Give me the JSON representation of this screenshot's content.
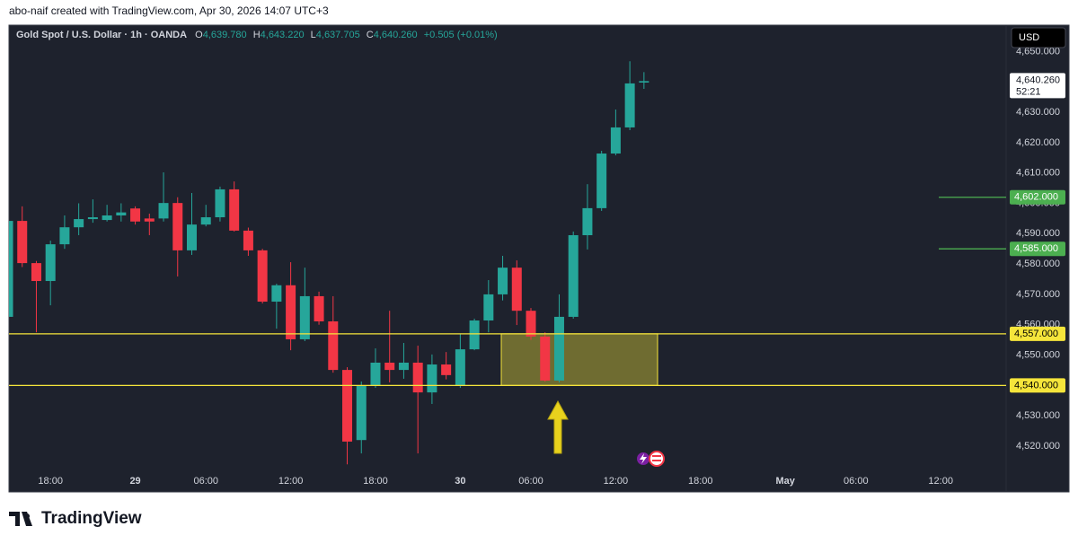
{
  "caption": "abo-naif created with TradingView.com, Apr 30, 2026 14:07 UTC+3",
  "brand": "TradingView",
  "chart_data": {
    "type": "candlestick",
    "title": "Gold Spot / U.S. Dollar · 1h · OANDA",
    "ohlc": [
      {
        "key": "O",
        "label": "4,639.780"
      },
      {
        "key": "H",
        "label": "4,643.220"
      },
      {
        "key": "L",
        "label": "4,637.705"
      },
      {
        "key": "C",
        "label": "4,640.260"
      }
    ],
    "change": "+0.505 (+0.01%)",
    "currency": "USD",
    "countdown": "52:21",
    "up_color": "#26a69a",
    "down_color": "#f23645",
    "categories": [
      null,
      null,
      null,
      "18:00",
      null,
      null,
      null,
      null,
      null,
      "29",
      null,
      null,
      null,
      null,
      "06:00",
      null,
      null,
      null,
      null,
      null,
      "12:00",
      null,
      null,
      null,
      null,
      null,
      "18:00",
      null,
      null,
      null,
      null,
      null,
      "30",
      null,
      null,
      null,
      null,
      "06:00",
      null,
      null,
      null,
      null,
      null,
      "12:00",
      null,
      null,
      null,
      null,
      null,
      "18:00",
      null,
      null,
      null,
      null,
      null,
      "May",
      null,
      null,
      null,
      null,
      "06:00",
      null,
      null,
      null,
      null,
      null,
      "12:00",
      null,
      null,
      null,
      null
    ],
    "open": [
      4562.6,
      4594.2,
      4580.3,
      4574.4,
      4586.5,
      4592.1,
      4594.8,
      4594.5,
      4596,
      4598.3,
      4595,
      4595,
      4600.1,
      4584.5,
      4593,
      4595.4,
      4604.6,
      4591,
      4584.5,
      4567.6,
      4573,
      4555.2,
      4569.4,
      4561.1,
      4545.1,
      4522,
      4540,
      4547.5,
      4545.1,
      4547.5,
      4537.7,
      4546.9,
      4540,
      4551.9,
      4561.4,
      4570,
      4578.8,
      4564.6,
      4556.1,
      4541.6,
      4562.6,
      4589.5,
      4598.4,
      4616.4,
      4625,
      4639.78,
      null,
      null,
      null,
      null,
      null,
      null,
      null,
      null,
      null,
      null,
      null,
      null,
      null,
      null,
      null,
      null,
      null,
      null,
      null,
      null,
      null,
      null,
      null,
      null,
      null
    ],
    "high": [
      4595,
      4599,
      4581,
      4587.7,
      4596,
      4600,
      4601.3,
      4599.5,
      4600,
      4599,
      4596.6,
      4610.2,
      4602,
      4603.4,
      4599.5,
      4605.5,
      4607.2,
      4592,
      4585,
      4573.5,
      4580.6,
      4578.8,
      4570.9,
      4569.4,
      4546,
      4541.3,
      4552.2,
      4564.6,
      4554,
      4553.1,
      4550.2,
      4551,
      4557,
      4562,
      4574.7,
      4582.7,
      4581.2,
      4565.5,
      4557.5,
      4570,
      4590.7,
      4606.3,
      4617.3,
      4630.9,
      4646.8,
      4643.22,
      null,
      null,
      null,
      null,
      null,
      null,
      null,
      null,
      null,
      null,
      null,
      null,
      null,
      null,
      null,
      null,
      null,
      null,
      null,
      null,
      null,
      null,
      null,
      null,
      null
    ],
    "low": [
      4560,
      4579,
      4557.5,
      4566.4,
      4585,
      4589.5,
      4593.6,
      4594,
      4594,
      4593,
      4589.5,
      4594,
      4575.9,
      4583,
      4592.4,
      4594,
      4590.7,
      4582.7,
      4567,
      4558.7,
      4551.6,
      4554.6,
      4560,
      4544.2,
      4514,
      4517.6,
      4539.2,
      4541,
      4542.2,
      4517.6,
      4533.9,
      4542,
      4539.2,
      4551.6,
      4557.5,
      4568,
      4559.9,
      4555,
      4541.3,
      4541,
      4562,
      4584.8,
      4597.5,
      4615.8,
      4624.1,
      4637.705,
      null,
      null,
      null,
      null,
      null,
      null,
      null,
      null,
      null,
      null,
      null,
      null,
      null,
      null,
      null,
      null,
      null,
      null,
      null,
      null,
      null,
      null,
      null,
      null,
      null
    ],
    "close": [
      4594.2,
      4580.3,
      4574.4,
      4586.5,
      4592.1,
      4594.8,
      4595.4,
      4596,
      4597,
      4594,
      4594,
      4600.1,
      4584.5,
      4593,
      4595.4,
      4604.6,
      4591,
      4584.5,
      4567.6,
      4573,
      4555.2,
      4569.4,
      4561.1,
      4545.1,
      4521.5,
      4540,
      4547.5,
      4545.1,
      4547.5,
      4537.7,
      4546.9,
      4543.4,
      4551.9,
      4561.4,
      4570,
      4578.8,
      4564.6,
      4556.1,
      4541.6,
      4562.6,
      4589.5,
      4598.4,
      4616.4,
      4625,
      4639.5,
      4640.26,
      null,
      null,
      null,
      null,
      null,
      null,
      null,
      null,
      null,
      null,
      null,
      null,
      null,
      null,
      null,
      null,
      null,
      null,
      null,
      null,
      null,
      null,
      null,
      null,
      null
    ],
    "ylim": [
      4512.6,
      4658.7
    ],
    "yticks": [
      {
        "value": 4520,
        "label": "4,520.000"
      },
      {
        "value": 4530,
        "label": "4,530.000"
      },
      {
        "value": 4540,
        "label": "4,540.000"
      },
      {
        "value": 4550,
        "label": "4,550.000"
      },
      {
        "value": 4560,
        "label": "4,560.000"
      },
      {
        "value": 4570,
        "label": "4,570.000"
      },
      {
        "value": 4580,
        "label": "4,580.000"
      },
      {
        "value": 4590,
        "label": "4,590.000"
      },
      {
        "value": 4600,
        "label": "4,600.000"
      },
      {
        "value": 4610,
        "label": "4,610.000"
      },
      {
        "value": 4620,
        "label": "4,620.000"
      },
      {
        "value": 4630,
        "label": "4,630.000"
      },
      {
        "value": 4640,
        "label": "4,640.000"
      },
      {
        "value": 4650,
        "label": "4,650.000"
      }
    ],
    "levels": [
      {
        "value": 4602,
        "label": "4,602.000",
        "color": "#4caf50",
        "text_color": "#ffffff",
        "extend": "short"
      },
      {
        "value": 4585,
        "label": "4,585.000",
        "color": "#4caf50",
        "text_color": "#ffffff",
        "extend": "short"
      },
      {
        "value": 4557,
        "label": "4,557.000",
        "color": "#f5e53b",
        "text_color": "#000000",
        "extend": "full"
      },
      {
        "value": 4540,
        "label": "4,540.000",
        "color": "#f5e53b",
        "text_color": "#000000",
        "extend": "full"
      }
    ]
  }
}
